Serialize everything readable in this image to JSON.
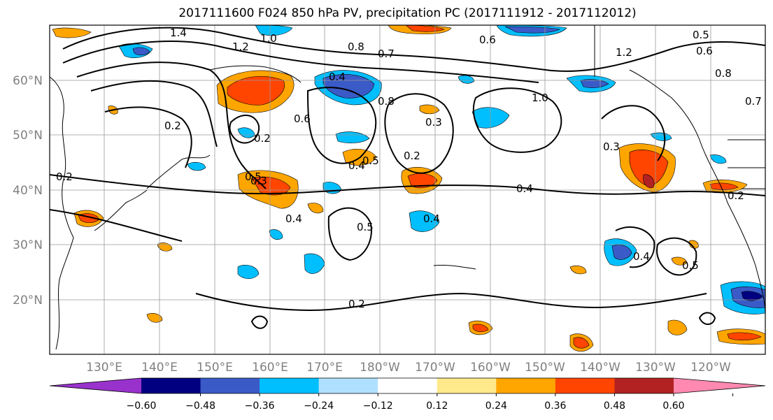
{
  "title": "2017111600 F024 850 hPa PV, precipitation PC (2017111912 - 2017112012)",
  "lat_labels": [
    "60°N",
    "50°N",
    "40°N",
    "30°N",
    "20°N"
  ],
  "lon_labels": [
    "130°E",
    "140°E",
    "150°E",
    "160°E",
    "170°E",
    "180°W",
    "170°W",
    "160°W",
    "150°W",
    "140°W",
    "130°W",
    "120°W"
  ],
  "colorbar": {
    "ticks": [
      "−0.60",
      "−0.48",
      "−0.36",
      "−0.24",
      "−0.12",
      "0.12",
      "0.24",
      "0.36",
      "0.48",
      "0.60"
    ],
    "colors": [
      "#9932cc",
      "#000080",
      "#3a5bc7",
      "#00bfff",
      "#b0e0ff",
      "#ffffff",
      "#ffe98a",
      "#ffa500",
      "#ff4500",
      "#b22222",
      "#ff89b0"
    ]
  },
  "contour_labels": [
    "1.4",
    "1.2",
    "1.0",
    "0.8",
    "0.7",
    "0.5",
    "0.6",
    "0.4",
    "0.2",
    "0.8",
    "0.6",
    "0.2",
    "0.3",
    "0.5",
    "0.4",
    "0.3",
    "0.2",
    "0.4",
    "0.5",
    "0.4",
    "0.5",
    "0.2",
    "0.3",
    "0.2",
    "0.7",
    "0.8",
    "1.2",
    "1.0",
    "0.4",
    "0.6",
    "0.4",
    "0.5",
    "0.2"
  ]
}
